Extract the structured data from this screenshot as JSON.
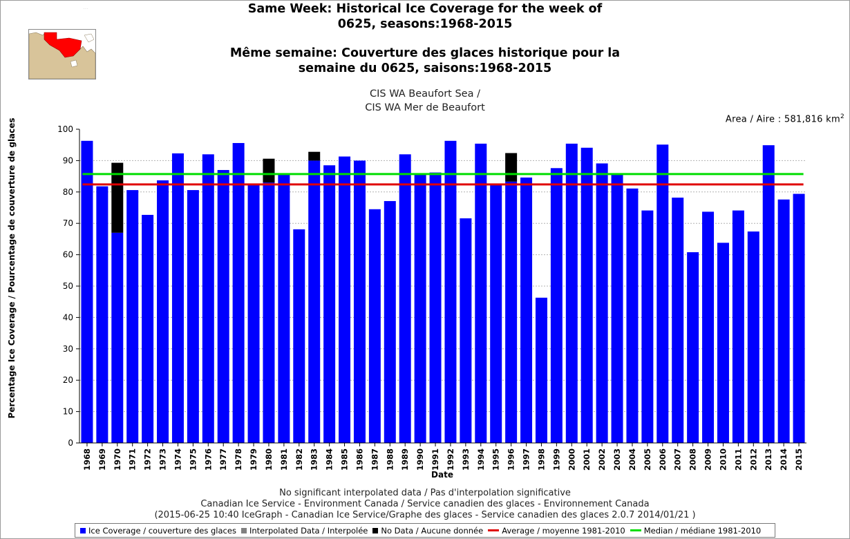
{
  "title": {
    "line1": "Same Week: Historical Ice Coverage for the week of",
    "line2": "0625, seasons:1968-2015",
    "line3": "Même semaine: Couverture des glaces historique pour la",
    "line4": "semaine du 0625, saisons:1968-2015"
  },
  "subtitle": {
    "line1": "CIS WA Beaufort Sea /",
    "line2": "CIS WA Mer de Beaufort"
  },
  "area": {
    "label": "Area / Aire : 581,816 km",
    "unit_sup": "2"
  },
  "footer": {
    "line1": "No significant interpolated data / Pas d'interpolation significative",
    "line2": "Canadian Ice Service - Environment Canada / Service canadien des glaces - Environnement Canada",
    "line3": "(2015-06-25 10:40 IceGraph - Canadian Ice Service/Graphe des glaces - Service canadien des glaces 2.0.7 2014/01/21 )"
  },
  "legend": {
    "ice": "Ice Coverage / couverture des glaces",
    "interp": "Interpolated Data / Interpolée",
    "nodata": "No Data / Aucune donnée",
    "average": "Average / moyenne 1981-2010",
    "median": "Median / médiane 1981-2010"
  },
  "colors": {
    "ice": "#0000ff",
    "interp": "#808080",
    "nodata": "#000000",
    "average": "#e00000",
    "median": "#00dd00",
    "map_land": "#d8c49a",
    "map_region": "#ff0000"
  },
  "chart_data": {
    "type": "bar",
    "stacked": true,
    "xlabel": "Date",
    "ylabel": "Percentage Ice Coverage / Pourcentage de couverture de glaces",
    "ylim": [
      0,
      100
    ],
    "yticks": [
      0,
      10,
      20,
      30,
      40,
      50,
      60,
      70,
      80,
      90,
      100
    ],
    "grid": true,
    "categories": [
      "1968",
      "1969",
      "1970",
      "1971",
      "1972",
      "1973",
      "1974",
      "1975",
      "1976",
      "1977",
      "1978",
      "1979",
      "1980",
      "1981",
      "1982",
      "1983",
      "1984",
      "1985",
      "1986",
      "1987",
      "1988",
      "1989",
      "1990",
      "1991",
      "1992",
      "1993",
      "1994",
      "1995",
      "1996",
      "1997",
      "1998",
      "1999",
      "2000",
      "2001",
      "2002",
      "2003",
      "2004",
      "2005",
      "2006",
      "2007",
      "2008",
      "2009",
      "2010",
      "2011",
      "2012",
      "2013",
      "2014",
      "2015"
    ],
    "series": [
      {
        "name": "Ice Coverage / couverture des glaces",
        "key": "ice",
        "values": [
          96.3,
          81.8,
          67.0,
          80.6,
          72.7,
          83.7,
          92.3,
          80.6,
          92.0,
          87.0,
          95.6,
          82.4,
          83.0,
          85.5,
          68.1,
          90.0,
          88.5,
          91.3,
          90.0,
          74.5,
          77.1,
          92.0,
          85.5,
          86.2,
          96.3,
          71.6,
          95.4,
          82.7,
          83.3,
          84.6,
          46.3,
          87.6,
          95.4,
          94.1,
          89.1,
          85.5,
          81.1,
          74.1,
          95.1,
          78.2,
          60.8,
          73.7,
          63.8,
          74.1,
          67.4,
          94.9,
          77.6,
          79.4
        ]
      },
      {
        "name": "Interpolated Data / Interpolée",
        "key": "interp",
        "values": [
          0,
          0,
          0,
          0,
          0,
          0,
          0,
          0,
          0,
          0,
          0,
          0,
          0,
          0,
          0,
          0,
          0,
          0,
          0,
          0,
          0,
          0,
          0,
          0,
          0,
          0,
          0,
          0,
          0,
          0,
          0,
          0,
          0,
          0,
          0,
          0,
          0,
          0,
          0,
          0,
          0,
          0,
          0,
          0,
          0,
          0,
          0,
          0
        ]
      },
      {
        "name": "No Data / Aucune donnée",
        "key": "nodata",
        "values": [
          0,
          0,
          22.3,
          0,
          0,
          0,
          0,
          0,
          0,
          0,
          0,
          0,
          7.6,
          0,
          0,
          2.8,
          0,
          0,
          0,
          0,
          0,
          0,
          0,
          0,
          0,
          0,
          0,
          0,
          9.1,
          0,
          0,
          0,
          0,
          0,
          0,
          0,
          0,
          0,
          0,
          0,
          0,
          0,
          0,
          0,
          0,
          0,
          0,
          0
        ]
      }
    ],
    "lines": [
      {
        "name": "Average / moyenne 1981-2010",
        "key": "average",
        "value": 82.4
      },
      {
        "name": "Median / médiane 1981-2010",
        "key": "median",
        "value": 85.7
      }
    ]
  }
}
